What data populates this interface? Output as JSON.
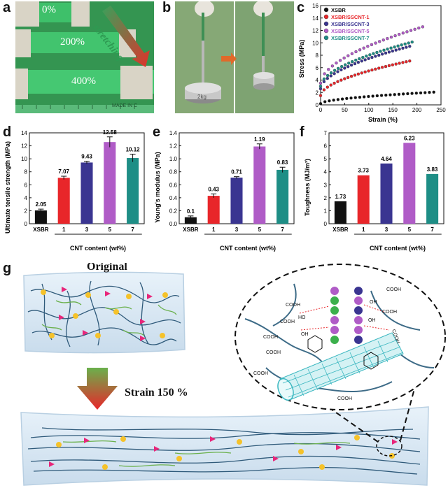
{
  "panel_letters": {
    "a": "a",
    "b": "b",
    "c": "c",
    "d": "d",
    "e": "e",
    "f": "f",
    "g": "g"
  },
  "photo_a": {
    "labels": [
      "0%",
      "200%",
      "400%"
    ],
    "arrow_text": "stretching",
    "print": "MADE IN C"
  },
  "photo_b": {
    "weight_label": "2kg"
  },
  "schematic": {
    "original_label": "Original",
    "strain_label": "Strain 150 %",
    "groups": [
      "COOH",
      "COOH",
      "OH",
      "COOH",
      "HO",
      "COOH",
      "COOH",
      "OH",
      "COOH",
      "OH",
      "COOH",
      "COOH",
      "COOH"
    ]
  },
  "colors": {
    "black": "#111111",
    "red": "#e8262a",
    "navy": "#3a3591",
    "magenta": "#b05cc7",
    "teal": "#1e8e86"
  },
  "chart_data": [
    {
      "type": "line",
      "title": "",
      "xlabel": "Strain (%)",
      "ylabel": "Stress (MPa)",
      "xlim": [
        0,
        250
      ],
      "ylim": [
        0,
        16
      ],
      "xticks": [
        0,
        50,
        100,
        150,
        200,
        250
      ],
      "yticks": [
        0,
        2,
        4,
        6,
        8,
        10,
        12,
        14,
        16
      ],
      "legend_position": "top-left",
      "series": [
        {
          "name": "XSBR",
          "end_x": 235,
          "end_y": 2.05,
          "start_y": 0.2
        },
        {
          "name": "XSBR/SSCNT-1",
          "end_x": 185,
          "end_y": 7.07,
          "start_y": 1.5
        },
        {
          "name": "XSBR/SSCNT-3",
          "end_x": 185,
          "end_y": 9.43,
          "start_y": 2.6
        },
        {
          "name": "XSBR/SSCNT-5",
          "end_x": 212,
          "end_y": 12.58,
          "start_y": 3.5
        },
        {
          "name": "XSBR/SSCNT-7",
          "end_x": 190,
          "end_y": 10.12,
          "start_y": 3.0
        }
      ]
    },
    {
      "type": "bar",
      "xlabel": "CNT content (wt%)",
      "ylabel": "Ultimate tensile strength (MPa)",
      "categories": [
        "XSBR",
        "1",
        "3",
        "5",
        "7"
      ],
      "values": [
        2.05,
        7.07,
        9.43,
        12.58,
        10.12
      ],
      "labels": [
        "2.05",
        "7.07",
        "9.43",
        "12.58",
        "10.12"
      ],
      "errors": [
        0.2,
        0.25,
        0.2,
        0.8,
        0.6
      ],
      "ylim": [
        0,
        14
      ],
      "yticks": [
        0,
        2,
        4,
        6,
        8,
        10,
        12,
        14
      ]
    },
    {
      "type": "bar",
      "xlabel": "CNT content (wt%)",
      "ylabel": "Young's modulus (MPa)",
      "categories": [
        "XSBR",
        "1",
        "3",
        "5",
        "7"
      ],
      "values": [
        0.1,
        0.43,
        0.71,
        1.19,
        0.83
      ],
      "labels": [
        "0.1",
        "0.43",
        "0.71",
        "1.19",
        "0.83"
      ],
      "errors": [
        0.02,
        0.03,
        0.015,
        0.04,
        0.04
      ],
      "ylim": [
        0,
        1.4
      ],
      "yticks": [
        0.0,
        0.2,
        0.4,
        0.6,
        0.8,
        1.0,
        1.2,
        1.4
      ]
    },
    {
      "type": "bar",
      "xlabel": "CNT content (wt%)",
      "ylabel": "Toughness (MJ/m³)",
      "categories": [
        "XSBR",
        "1",
        "3",
        "5",
        "7"
      ],
      "values": [
        1.73,
        3.73,
        4.64,
        6.23,
        3.83
      ],
      "labels": [
        "1.73",
        "3.73",
        "4.64",
        "6.23",
        "3.83"
      ],
      "errors": [
        0,
        0,
        0,
        0,
        0
      ],
      "ylim": [
        0,
        7
      ],
      "yticks": [
        0,
        1,
        2,
        3,
        4,
        5,
        6,
        7
      ]
    }
  ]
}
